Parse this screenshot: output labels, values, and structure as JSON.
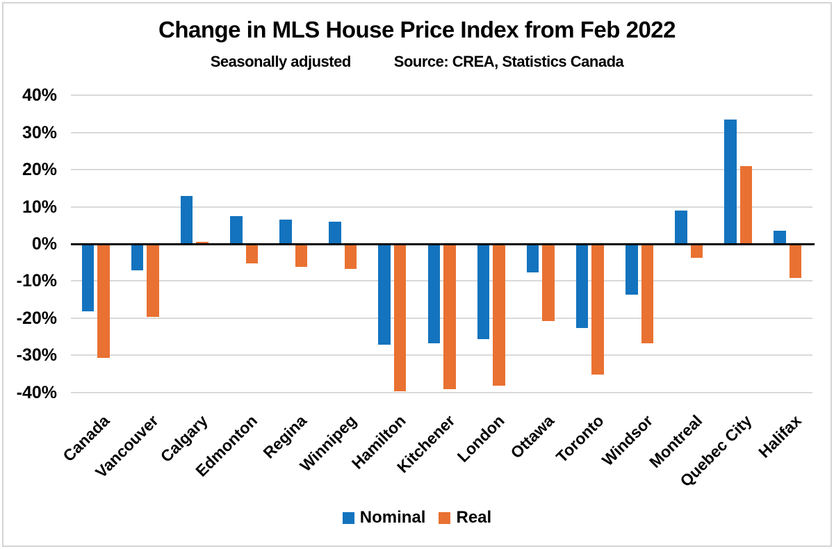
{
  "title": "Change in MLS House Price Index from Feb 2022",
  "subtitle": {
    "left": "Seasonally adjusted",
    "right": "Source: CREA, Statistics Canada"
  },
  "axis": {
    "yticks": [
      "40%",
      "30%",
      "20%",
      "10%",
      "0%",
      "-10%",
      "-20%",
      "-30%",
      "-40%"
    ]
  },
  "legend": {
    "items": [
      {
        "label": "Nominal",
        "color": "#1373BE"
      },
      {
        "label": "Real",
        "color": "#E97132"
      }
    ]
  },
  "colors": {
    "nominal": "#1373BE",
    "real": "#E97132",
    "gridline": "#D9D9D9",
    "zero_line": "#000000",
    "text": "#000000",
    "frame_border": "#D4D4D4",
    "background": "#FFFFFF"
  },
  "chart_data": {
    "type": "bar",
    "title": "Change in MLS House Price Index from Feb 2022",
    "subtitle": "Seasonally adjusted    Source: CREA, Statistics Canada",
    "categories": [
      "Canada",
      "Vancouver",
      "Calgary",
      "Edmonton",
      "Regina",
      "Winnipeg",
      "Hamilton",
      "Kitchener",
      "London",
      "Ottawa",
      "Toronto",
      "Windsor",
      "Montreal",
      "Quebec City",
      "Halifax"
    ],
    "series": [
      {
        "name": "Nominal",
        "color": "#1373BE",
        "values": [
          -18,
          -7,
          13,
          7.5,
          6.5,
          6,
          -27,
          -26.5,
          -25.5,
          -7.5,
          -22.5,
          -13.5,
          9,
          33.5,
          3.5
        ]
      },
      {
        "name": "Real",
        "color": "#E97132",
        "values": [
          -30.5,
          -19.5,
          0.5,
          -5,
          -6,
          -6.5,
          -39.5,
          -39,
          -38,
          -20.5,
          -35,
          -26.5,
          -3.5,
          21,
          -9
        ]
      }
    ],
    "unit": "%",
    "ylim": [
      -40,
      40
    ],
    "ytick_step": 10,
    "grid": true,
    "zero_line": true,
    "legend_position": "bottom"
  }
}
